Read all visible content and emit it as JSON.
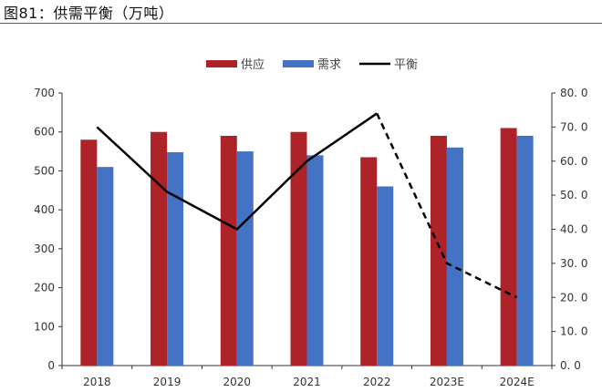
{
  "chart_data": {
    "type": "bar+line",
    "title": "图81：供需平衡（万吨）",
    "categories": [
      "2018",
      "2019",
      "2020",
      "2021",
      "2022",
      "2023E",
      "2024E"
    ],
    "series": [
      {
        "name": "供应",
        "type": "bar",
        "axis": "left",
        "color": "#AE2328",
        "values": [
          580,
          600,
          590,
          600,
          535,
          590,
          610
        ]
      },
      {
        "name": "需求",
        "type": "bar",
        "axis": "left",
        "color": "#4472C4",
        "values": [
          510,
          548,
          550,
          540,
          460,
          560,
          590
        ]
      },
      {
        "name": "平衡",
        "type": "line",
        "axis": "right",
        "color": "#000000",
        "values": [
          70,
          51,
          40,
          60,
          74,
          30,
          20
        ],
        "dashed_from_index": 4
      }
    ],
    "ylim_left": [
      0,
      700
    ],
    "yticks_left": [
      "0",
      "100",
      "200",
      "300",
      "400",
      "500",
      "600",
      "700"
    ],
    "ylim_right": [
      0,
      80
    ],
    "yticks_right": [
      "0. 0",
      "10. 0",
      "20. 0",
      "30. 0",
      "40. 0",
      "50. 0",
      "60. 0",
      "70. 0",
      "80. 0"
    ],
    "legend": "top-center",
    "grid": false
  }
}
